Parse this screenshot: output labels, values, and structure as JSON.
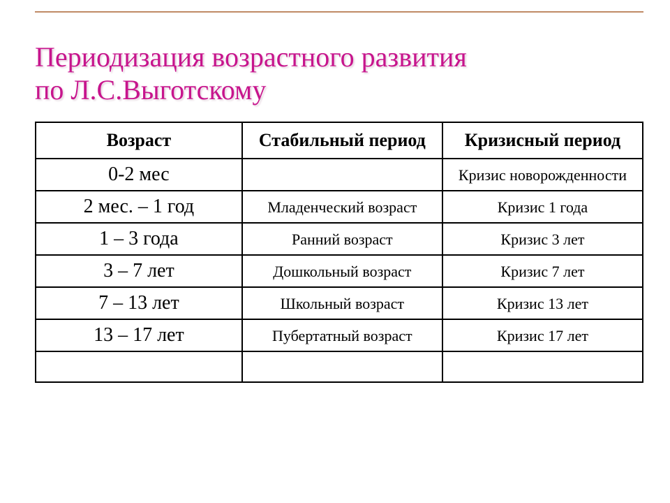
{
  "title_line1": "Периодизация возрастного развития",
  "title_line2": "по Л.С.Выготскому",
  "columns": [
    "Возраст",
    "Стабильный период",
    "Кризисный период"
  ],
  "rows": [
    {
      "age": "0-2 мес",
      "stable": "",
      "crisis": "Кризис новорожденности"
    },
    {
      "age": "2 мес. – 1 год",
      "stable": "Младенческий возраст",
      "crisis": "Кризис 1 года"
    },
    {
      "age": "1 – 3 года",
      "stable": "Ранний возраст",
      "crisis": "Кризис 3 лет"
    },
    {
      "age": "3 – 7 лет",
      "stable": "Дошкольный возраст",
      "crisis": "Кризис 7 лет"
    },
    {
      "age": "7 – 13 лет",
      "stable": "Школьный возраст",
      "crisis": "Кризис 13 лет"
    },
    {
      "age": "13 – 17 лет",
      "stable": "Пубертатный возраст",
      "crisis": "Кризис 17 лет"
    },
    {
      "age": "",
      "stable": "",
      "crisis": ""
    }
  ],
  "style": {
    "title_color": "#c7158d",
    "title_fontsize_pt": 30,
    "rule_color": "#c08a66",
    "border_color": "#000000",
    "header_fontsize_pt": 20,
    "age_fontsize_pt": 21,
    "cell_fontsize_pt": 17,
    "background_color": "#ffffff",
    "font_family": "Times New Roman",
    "column_widths_pct": [
      34,
      33,
      33
    ]
  }
}
